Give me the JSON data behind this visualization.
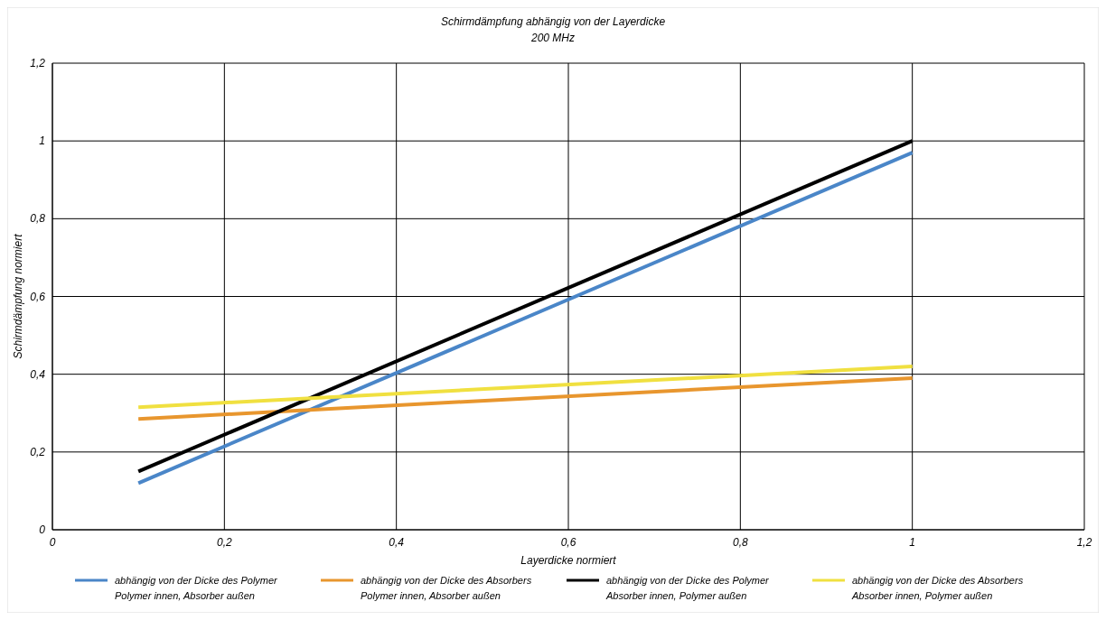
{
  "chart_data": {
    "type": "line",
    "title": "Schirmdämpfung abhängig von der Layerdicke",
    "subtitle": "200 MHz",
    "xlabel": "Layerdicke normiert",
    "ylabel": "Schirmdämpfung normiert",
    "xlim": [
      0,
      1.2
    ],
    "xticks": [
      0,
      {
        "value": 0.2,
        "label": "0,2"
      },
      {
        "value": 0.4,
        "label": "0,4"
      },
      {
        "value": 0.6,
        "label": "0,6"
      },
      {
        "value": 0.8,
        "label": "0,8"
      },
      1,
      {
        "value": 1.2,
        "label": "1,2"
      }
    ],
    "ylim": [
      0,
      1.2
    ],
    "yticks": [
      0,
      {
        "value": 0.2,
        "label": "0,2"
      },
      {
        "value": 0.4,
        "label": "0,4"
      },
      {
        "value": 0.6,
        "label": "0,6"
      },
      {
        "value": 0.8,
        "label": "0,8"
      },
      1,
      {
        "value": 1.2,
        "label": "1,2"
      }
    ],
    "grid": true,
    "legend": "bottom",
    "marker": "none",
    "line_style": "solid",
    "x": [
      0.1,
      1
    ],
    "series": [
      {
        "name": "abhängig von der Dicke des Polymer\nPolymer innen, Absorber außen",
        "color": "#4a86c8",
        "values": [
          0.12,
          0.97
        ]
      },
      {
        "name": "abhängig von der Dicke des Absorbers\nPolymer innen, Absorber außen",
        "color": "#e8962e",
        "values": [
          0.285,
          0.39
        ]
      },
      {
        "name": "abhängig von der Dicke des Polymer\nAbsorber innen, Polymer außen",
        "color": "#000000",
        "values": [
          0.15,
          1.0
        ]
      },
      {
        "name": "abhängig von der Dicke des Absorbers\nAbsorber innen, Polymer außen",
        "color": "#f0e040",
        "values": [
          0.315,
          0.42
        ]
      }
    ]
  }
}
